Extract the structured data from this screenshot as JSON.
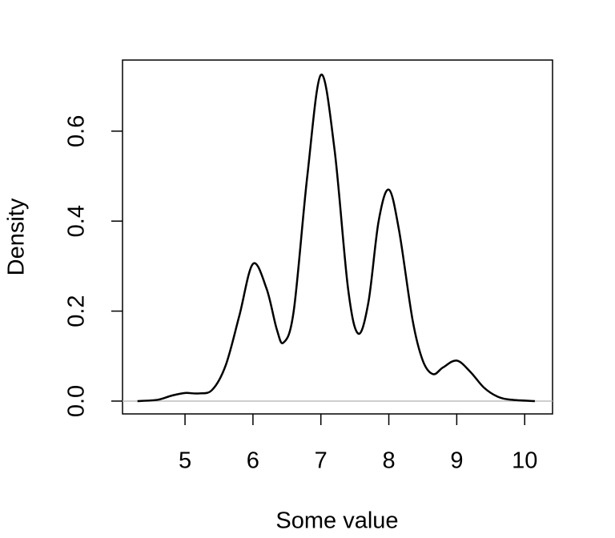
{
  "chart_data": {
    "type": "line",
    "x_label": "Some value",
    "y_label": "Density",
    "x": [
      4.3,
      4.6,
      4.8,
      5.0,
      5.2,
      5.4,
      5.6,
      5.8,
      6.0,
      6.2,
      6.35,
      6.45,
      6.6,
      6.8,
      7.0,
      7.2,
      7.4,
      7.55,
      7.7,
      7.85,
      8.0,
      8.15,
      8.35,
      8.5,
      8.65,
      8.8,
      9.0,
      9.2,
      9.4,
      9.6,
      9.8,
      10.15
    ],
    "values": [
      0.0,
      0.003,
      0.012,
      0.018,
      0.017,
      0.025,
      0.08,
      0.19,
      0.305,
      0.25,
      0.16,
      0.13,
      0.2,
      0.5,
      0.725,
      0.56,
      0.25,
      0.15,
      0.22,
      0.4,
      0.47,
      0.38,
      0.18,
      0.09,
      0.06,
      0.075,
      0.09,
      0.065,
      0.03,
      0.01,
      0.003,
      0.0
    ],
    "color": "#000000",
    "xlim": [
      4.08,
      10.41
    ],
    "ylim": [
      -0.0285,
      0.758
    ],
    "xticks": [
      5,
      6,
      7,
      8,
      9,
      10
    ],
    "yticks": [
      {
        "value": 0,
        "label": "0.0"
      },
      0.2,
      0.4,
      0.6
    ]
  }
}
